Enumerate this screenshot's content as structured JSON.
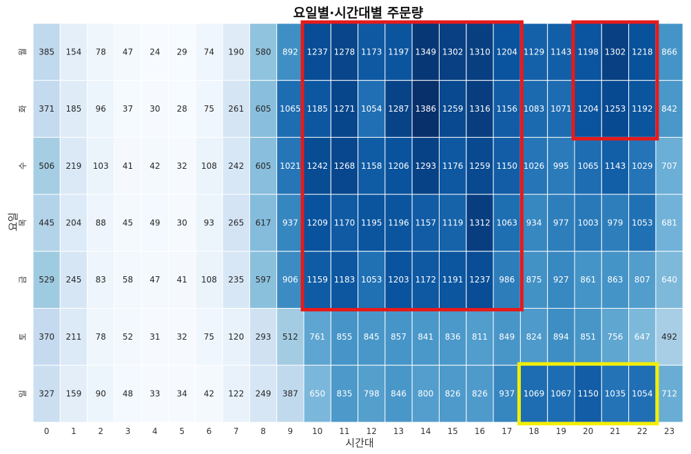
{
  "chart_data": {
    "type": "heatmap",
    "title": "요일별·시간대별 주문량",
    "xlabel": "시간대",
    "ylabel": "요일",
    "x_categories": [
      "0",
      "1",
      "2",
      "3",
      "4",
      "5",
      "6",
      "7",
      "8",
      "9",
      "10",
      "11",
      "12",
      "13",
      "14",
      "15",
      "16",
      "17",
      "18",
      "19",
      "20",
      "21",
      "22",
      "23"
    ],
    "y_categories": [
      "월",
      "화",
      "수",
      "목",
      "금",
      "토",
      "일"
    ],
    "values": [
      [
        385,
        154,
        78,
        47,
        24,
        29,
        74,
        190,
        580,
        892,
        1237,
        1278,
        1173,
        1197,
        1349,
        1302,
        1310,
        1204,
        1129,
        1143,
        1198,
        1302,
        1218,
        866
      ],
      [
        371,
        185,
        96,
        37,
        30,
        28,
        75,
        261,
        605,
        1065,
        1185,
        1271,
        1054,
        1287,
        1386,
        1259,
        1316,
        1156,
        1083,
        1071,
        1204,
        1253,
        1192,
        842
      ],
      [
        506,
        219,
        103,
        41,
        42,
        32,
        108,
        242,
        605,
        1021,
        1242,
        1268,
        1158,
        1206,
        1293,
        1176,
        1259,
        1150,
        1026,
        995,
        1065,
        1143,
        1029,
        707
      ],
      [
        445,
        204,
        88,
        45,
        49,
        30,
        93,
        265,
        617,
        937,
        1209,
        1170,
        1195,
        1196,
        1157,
        1119,
        1312,
        1063,
        934,
        977,
        1003,
        979,
        1053,
        681
      ],
      [
        529,
        245,
        83,
        58,
        47,
        41,
        108,
        235,
        597,
        906,
        1159,
        1183,
        1053,
        1203,
        1172,
        1191,
        1237,
        986,
        875,
        927,
        861,
        863,
        807,
        640
      ],
      [
        370,
        211,
        78,
        52,
        31,
        32,
        75,
        120,
        293,
        512,
        761,
        855,
        845,
        857,
        841,
        836,
        811,
        849,
        824,
        894,
        851,
        756,
        647,
        492
      ],
      [
        327,
        159,
        90,
        48,
        33,
        34,
        42,
        122,
        249,
        387,
        650,
        835,
        798,
        846,
        800,
        826,
        826,
        937,
        1069,
        1067,
        1150,
        1035,
        1054,
        712
      ]
    ],
    "colormap": "Blues",
    "highlights": [
      {
        "color": "#e51b1b",
        "rows": [
          0,
          4
        ],
        "cols": [
          10,
          17
        ]
      },
      {
        "color": "#e51b1b",
        "rows": [
          0,
          1
        ],
        "cols": [
          20,
          22
        ]
      },
      {
        "color": "#f2ee00",
        "rows": [
          6,
          6
        ],
        "cols": [
          18,
          22
        ]
      }
    ]
  }
}
